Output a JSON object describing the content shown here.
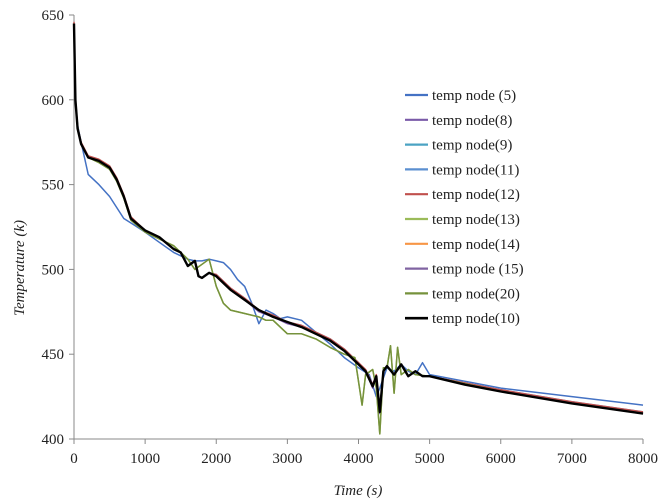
{
  "chart_data": {
    "type": "line",
    "title": "",
    "xlabel": "Time (s)",
    "ylabel": "Temperature (k)",
    "xlim": [
      0,
      8000
    ],
    "ylim": [
      400,
      650
    ],
    "xticks": [
      0,
      1000,
      2000,
      3000,
      4000,
      5000,
      6000,
      7000,
      8000
    ],
    "yticks": [
      400,
      450,
      500,
      550,
      600,
      650
    ],
    "grid": false,
    "legend_position": "right",
    "series": [
      {
        "name": "temp node (5)",
        "color": "#4472c4",
        "x": [
          0,
          20,
          50,
          100,
          200,
          350,
          500,
          700,
          850,
          1000,
          1200,
          1400,
          1500,
          1600,
          1700,
          1800,
          1900,
          2000,
          2100,
          2200,
          2300,
          2400,
          2500,
          2600,
          2700,
          2800,
          2900,
          3000,
          3200,
          3400,
          3600,
          3800,
          4000,
          4150,
          4250,
          4300,
          4400,
          4500,
          4600,
          4700,
          4800,
          4900,
          5000,
          5500,
          6000,
          7000,
          8000
        ],
        "y": [
          645,
          600,
          585,
          575,
          556,
          550,
          543,
          530,
          526,
          522,
          516,
          510,
          508,
          506,
          505,
          505,
          506,
          505,
          504,
          500,
          494,
          490,
          480,
          468,
          476,
          474,
          471,
          472,
          470,
          463,
          456,
          448,
          442,
          438,
          425,
          430,
          442,
          440,
          444,
          440,
          438,
          445,
          438,
          434,
          430,
          425,
          420
        ]
      },
      {
        "name": "temp node(8)",
        "color": "#7a5aa8",
        "x": [
          0,
          20,
          50,
          100,
          200,
          350,
          500,
          600,
          700,
          800,
          1000,
          1200,
          1400,
          1500,
          1600,
          1700,
          1750,
          1800,
          1900,
          2000,
          2200,
          2400,
          2600,
          2800,
          3000,
          3200,
          3400,
          3600,
          3800,
          4000,
          4100,
          4200,
          4250,
          4300,
          4350,
          4400,
          4500,
          4600,
          4700,
          4800,
          4900,
          5000,
          5500,
          6000,
          7000,
          8000
        ],
        "y": [
          645,
          600,
          583,
          574,
          566,
          564,
          560,
          553,
          543,
          530,
          523,
          519,
          512,
          510,
          502,
          505,
          496,
          495,
          498,
          496,
          488,
          482,
          475,
          472,
          468,
          466,
          462,
          458,
          452,
          444,
          440,
          430,
          437,
          415,
          440,
          443,
          438,
          444,
          437,
          440,
          437,
          437,
          432,
          428,
          421,
          415
        ]
      },
      {
        "name": "temp node(9)",
        "color": "#4ba3c3",
        "x": [
          0,
          20,
          50,
          100,
          200,
          350,
          500,
          600,
          700,
          800,
          1000,
          1200,
          1400,
          1500,
          1600,
          1700,
          1750,
          1800,
          1900,
          2000,
          2200,
          2400,
          2600,
          2800,
          3000,
          3200,
          3400,
          3600,
          3800,
          4000,
          4100,
          4200,
          4250,
          4300,
          4350,
          4400,
          4500,
          4600,
          4700,
          4800,
          4900,
          5000,
          5500,
          6000,
          7000,
          8000
        ],
        "y": [
          645,
          600,
          583,
          574,
          566,
          564,
          560,
          553,
          543,
          530,
          523,
          519,
          512,
          510,
          502,
          505,
          496,
          495,
          498,
          496,
          488,
          482,
          476,
          472,
          469,
          466,
          462,
          458,
          452,
          444,
          440,
          431,
          437,
          416,
          440,
          443,
          438,
          444,
          437,
          440,
          437,
          437,
          432,
          428,
          421,
          415
        ]
      },
      {
        "name": "temp node(11)",
        "color": "#5b8fd0",
        "x": [
          0,
          20,
          50,
          100,
          200,
          350,
          500,
          600,
          700,
          800,
          1000,
          1200,
          1400,
          1500,
          1600,
          1700,
          1750,
          1800,
          1900,
          2000,
          2200,
          2400,
          2600,
          2800,
          3000,
          3200,
          3400,
          3600,
          3800,
          4000,
          4100,
          4200,
          4250,
          4300,
          4350,
          4400,
          4500,
          4600,
          4700,
          4800,
          4900,
          5000,
          5500,
          6000,
          7000,
          8000
        ],
        "y": [
          645,
          600,
          583,
          574,
          566,
          564,
          560,
          553,
          543,
          530,
          523,
          519,
          512,
          510,
          502,
          505,
          496,
          495,
          498,
          497,
          489,
          483,
          476,
          473,
          469,
          467,
          463,
          459,
          453,
          445,
          440,
          432,
          437,
          417,
          441,
          443,
          438,
          444,
          437,
          440,
          437,
          437,
          433,
          429,
          422,
          416
        ]
      },
      {
        "name": "temp node(12)",
        "color": "#c0504d",
        "x": [
          0,
          20,
          50,
          100,
          200,
          350,
          500,
          600,
          700,
          800,
          1000,
          1200,
          1400,
          1500,
          1600,
          1700,
          1750,
          1800,
          1900,
          2000,
          2200,
          2400,
          2600,
          2800,
          3000,
          3200,
          3400,
          3600,
          3800,
          4000,
          4100,
          4200,
          4250,
          4300,
          4350,
          4400,
          4500,
          4600,
          4700,
          4800,
          4900,
          5000,
          5500,
          6000,
          7000,
          8000
        ],
        "y": [
          646,
          601,
          584,
          575,
          567,
          565,
          561,
          554,
          544,
          531,
          523,
          519,
          512,
          510,
          502,
          505,
          496,
          495,
          498,
          497,
          489,
          483,
          476,
          473,
          469,
          467,
          463,
          459,
          453,
          445,
          441,
          432,
          438,
          416,
          441,
          443,
          438,
          444,
          437,
          440,
          437,
          437,
          433,
          429,
          422,
          416
        ]
      },
      {
        "name": "temp node(13)",
        "color": "#9bbb59",
        "x": [
          0,
          20,
          50,
          100,
          200,
          350,
          500,
          600,
          700,
          800,
          1000,
          1200,
          1400,
          1500,
          1600,
          1700,
          1800,
          1900,
          2000,
          2100,
          2200,
          2400,
          2600,
          2700,
          2800,
          3000,
          3200,
          3400,
          3600,
          3800,
          3950,
          4050,
          4100,
          4200,
          4250,
          4300,
          4350,
          4400,
          4450,
          4500,
          4550,
          4600,
          4700,
          4800,
          5000,
          6000,
          7000,
          8000
        ],
        "y": [
          645,
          600,
          584,
          574,
          566,
          563,
          559,
          552,
          542,
          529,
          522,
          518,
          514,
          510,
          506,
          500,
          503,
          506,
          490,
          480,
          476,
          474,
          472,
          470,
          470,
          462,
          462,
          459,
          454,
          450,
          448,
          420,
          438,
          441,
          430,
          403,
          442,
          442,
          455,
          427,
          454,
          438,
          441,
          438,
          437,
          428,
          421,
          415
        ]
      },
      {
        "name": "temp node(14)",
        "color": "#f79646",
        "x": [
          0,
          20,
          50,
          100,
          200,
          350,
          500,
          600,
          700,
          800,
          1000,
          1200,
          1400,
          1500,
          1600,
          1700,
          1750,
          1800,
          1900,
          2000,
          2200,
          2400,
          2600,
          2800,
          3000,
          3200,
          3400,
          3600,
          3800,
          4000,
          4100,
          4200,
          4250,
          4300,
          4350,
          4400,
          4500,
          4600,
          4700,
          4800,
          4900,
          5000,
          5500,
          6000,
          7000,
          8000
        ],
        "y": [
          645,
          600,
          583,
          574,
          566,
          564,
          560,
          553,
          543,
          530,
          523,
          519,
          512,
          510,
          502,
          505,
          496,
          495,
          498,
          496,
          488,
          482,
          476,
          472,
          469,
          466,
          462,
          458,
          452,
          444,
          440,
          431,
          437,
          416,
          440,
          443,
          438,
          444,
          437,
          440,
          437,
          437,
          432,
          428,
          421,
          415
        ]
      },
      {
        "name": "temp node (15)",
        "color": "#8064a2",
        "x": [
          0,
          20,
          50,
          100,
          200,
          350,
          500,
          600,
          700,
          800,
          1000,
          1200,
          1400,
          1500,
          1600,
          1700,
          1750,
          1800,
          1900,
          2000,
          2200,
          2400,
          2600,
          2800,
          3000,
          3200,
          3400,
          3600,
          3800,
          4000,
          4100,
          4200,
          4250,
          4300,
          4350,
          4400,
          4500,
          4600,
          4700,
          4800,
          4900,
          5000,
          5500,
          6000,
          7000,
          8000
        ],
        "y": [
          645,
          600,
          583,
          574,
          566,
          564,
          560,
          553,
          543,
          530,
          523,
          519,
          512,
          510,
          502,
          505,
          496,
          495,
          498,
          496,
          488,
          482,
          476,
          472,
          469,
          466,
          462,
          458,
          452,
          444,
          440,
          431,
          437,
          416,
          440,
          443,
          438,
          444,
          437,
          440,
          437,
          437,
          432,
          428,
          421,
          415
        ]
      },
      {
        "name": "temp node(20)",
        "color": "#76923c",
        "x": [
          0,
          20,
          50,
          100,
          200,
          350,
          500,
          600,
          700,
          800,
          1000,
          1200,
          1400,
          1500,
          1600,
          1700,
          1800,
          1900,
          2000,
          2100,
          2200,
          2400,
          2600,
          2700,
          2800,
          3000,
          3200,
          3400,
          3600,
          3800,
          3950,
          4050,
          4100,
          4200,
          4250,
          4300,
          4350,
          4400,
          4450,
          4500,
          4550,
          4600,
          4700,
          4800,
          5000,
          6000,
          7000,
          8000
        ],
        "y": [
          645,
          600,
          584,
          574,
          566,
          563,
          559,
          552,
          542,
          529,
          522,
          518,
          514,
          510,
          506,
          500,
          503,
          506,
          490,
          480,
          476,
          474,
          472,
          470,
          470,
          462,
          462,
          459,
          454,
          450,
          448,
          420,
          438,
          441,
          430,
          403,
          442,
          442,
          455,
          427,
          454,
          438,
          441,
          438,
          437,
          428,
          421,
          415
        ]
      },
      {
        "name": "temp node(10)",
        "color": "#000000",
        "bold": true,
        "x": [
          0,
          20,
          50,
          100,
          200,
          350,
          500,
          600,
          700,
          800,
          1000,
          1200,
          1400,
          1500,
          1600,
          1700,
          1750,
          1800,
          1900,
          2000,
          2200,
          2400,
          2600,
          2800,
          3000,
          3200,
          3400,
          3600,
          3800,
          4000,
          4100,
          4200,
          4250,
          4300,
          4350,
          4400,
          4500,
          4600,
          4700,
          4800,
          4900,
          5000,
          5500,
          6000,
          7000,
          8000
        ],
        "y": [
          645,
          600,
          583,
          574,
          566,
          564,
          560,
          553,
          543,
          530,
          523,
          519,
          512,
          510,
          502,
          505,
          496,
          495,
          498,
          496,
          488,
          482,
          476,
          472,
          469,
          466,
          462,
          458,
          452,
          444,
          440,
          431,
          437,
          416,
          440,
          443,
          438,
          444,
          437,
          440,
          437,
          437,
          432,
          428,
          421,
          415
        ]
      }
    ]
  }
}
